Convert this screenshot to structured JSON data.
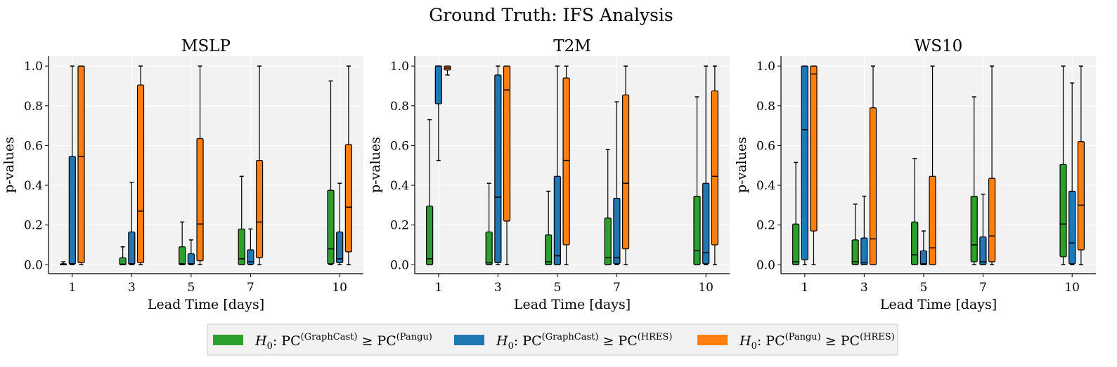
{
  "title": "Ground Truth: IFS Analysis",
  "xlabel": "Lead Time [days]",
  "ylabel": "p-values",
  "legend": {
    "placement": "bottom-center",
    "entries": [
      {
        "prefix": "H",
        "sub": "0",
        "mid": ": PC",
        "sup1": "(GraphCast)",
        "rel": " ≥ PC",
        "sup2": "(Pangu)",
        "color": "#2ca02c"
      },
      {
        "prefix": "H",
        "sub": "0",
        "mid": ": PC",
        "sup1": "(GraphCast)",
        "rel": " ≥ PC",
        "sup2": "(HRES)",
        "color": "#1f77b4"
      },
      {
        "prefix": "H",
        "sub": "0",
        "mid": ": PC",
        "sup1": "(Pangu)",
        "rel": " ≥ PC",
        "sup2": "(HRES)",
        "color": "#ff7f0e"
      }
    ]
  },
  "chart_data": [
    {
      "type": "boxplot",
      "title": "MSLP",
      "xlabel": "Lead Time [days]",
      "ylabel": "p-values",
      "categories": [
        "1",
        "3",
        "5",
        "7",
        "10"
      ],
      "x": [
        1,
        3,
        5,
        7,
        10
      ],
      "xlim": [
        0.2,
        10.8
      ],
      "ylim": [
        -0.045,
        1.05
      ],
      "yticks": [
        0.0,
        0.2,
        0.4,
        0.6,
        0.8,
        1.0
      ],
      "grid": true,
      "series": [
        {
          "name": "H0: PC(GraphCast) ≥ PC(Pangu)",
          "color": "#2ca02c",
          "offset": -0.3,
          "boxes": [
            {
              "x": 1,
              "wlo": 0.0,
              "q1": 0.0,
              "med": 0.0,
              "q3": 0.005,
              "whi": 0.015
            },
            {
              "x": 3,
              "wlo": 0.0,
              "q1": 0.0,
              "med": 0.003,
              "q3": 0.035,
              "whi": 0.09
            },
            {
              "x": 5,
              "wlo": 0.0,
              "q1": 0.0,
              "med": 0.005,
              "q3": 0.09,
              "whi": 0.215
            },
            {
              "x": 7,
              "wlo": 0.0,
              "q1": 0.0,
              "med": 0.03,
              "q3": 0.18,
              "whi": 0.445
            },
            {
              "x": 10,
              "wlo": 0.0,
              "q1": 0.005,
              "med": 0.08,
              "q3": 0.375,
              "whi": 0.925
            }
          ]
        },
        {
          "name": "H0: PC(GraphCast) ≥ PC(HRES)",
          "color": "#1f77b4",
          "offset": 0.0,
          "boxes": [
            {
              "x": 1,
              "wlo": 0.0,
              "q1": 0.003,
              "med": 0.005,
              "q3": 0.545,
              "whi": 1.0
            },
            {
              "x": 3,
              "wlo": 0.0,
              "q1": 0.003,
              "med": 0.005,
              "q3": 0.165,
              "whi": 0.415
            },
            {
              "x": 5,
              "wlo": 0.0,
              "q1": 0.002,
              "med": 0.005,
              "q3": 0.055,
              "whi": 0.125
            },
            {
              "x": 7,
              "wlo": 0.0,
              "q1": 0.002,
              "med": 0.015,
              "q3": 0.075,
              "whi": 0.18
            },
            {
              "x": 10,
              "wlo": 0.0,
              "q1": 0.01,
              "med": 0.03,
              "q3": 0.165,
              "whi": 0.41
            }
          ]
        },
        {
          "name": "H0: PC(Pangu) ≥ PC(HRES)",
          "color": "#ff7f0e",
          "offset": 0.3,
          "boxes": [
            {
              "x": 1,
              "wlo": 0.0,
              "q1": 0.01,
              "med": 0.545,
              "q3": 1.0,
              "whi": 1.0
            },
            {
              "x": 3,
              "wlo": 0.0,
              "q1": 0.01,
              "med": 0.27,
              "q3": 0.905,
              "whi": 1.0
            },
            {
              "x": 5,
              "wlo": 0.0,
              "q1": 0.02,
              "med": 0.205,
              "q3": 0.635,
              "whi": 1.0
            },
            {
              "x": 7,
              "wlo": 0.0,
              "q1": 0.035,
              "med": 0.215,
              "q3": 0.525,
              "whi": 1.0
            },
            {
              "x": 10,
              "wlo": 0.0,
              "q1": 0.065,
              "med": 0.29,
              "q3": 0.605,
              "whi": 1.0
            }
          ]
        }
      ]
    },
    {
      "type": "boxplot",
      "title": "T2M",
      "xlabel": "Lead Time [days]",
      "ylabel": "p-values",
      "categories": [
        "1",
        "3",
        "5",
        "7",
        "10"
      ],
      "x": [
        1,
        3,
        5,
        7,
        10
      ],
      "xlim": [
        0.2,
        10.8
      ],
      "ylim": [
        -0.045,
        1.05
      ],
      "yticks": [
        0.0,
        0.2,
        0.4,
        0.6,
        0.8,
        1.0
      ],
      "grid": true,
      "series": [
        {
          "name": "H0: PC(GraphCast) ≥ PC(Pangu)",
          "color": "#2ca02c",
          "offset": -0.3,
          "boxes": [
            {
              "x": 1,
              "wlo": 0.0,
              "q1": 0.0,
              "med": 0.03,
              "q3": 0.295,
              "whi": 0.73
            },
            {
              "x": 3,
              "wlo": 0.0,
              "q1": 0.0,
              "med": 0.01,
              "q3": 0.165,
              "whi": 0.41
            },
            {
              "x": 5,
              "wlo": 0.0,
              "q1": 0.0,
              "med": 0.015,
              "q3": 0.15,
              "whi": 0.37
            },
            {
              "x": 7,
              "wlo": 0.0,
              "q1": 0.0,
              "med": 0.035,
              "q3": 0.235,
              "whi": 0.58
            },
            {
              "x": 10,
              "wlo": 0.0,
              "q1": 0.0,
              "med": 0.07,
              "q3": 0.345,
              "whi": 0.845
            }
          ]
        },
        {
          "name": "H0: PC(GraphCast) ≥ PC(HRES)",
          "color": "#1f77b4",
          "offset": 0.0,
          "boxes": [
            {
              "x": 1,
              "wlo": 0.525,
              "q1": 0.81,
              "med": 1.0,
              "q3": 1.0,
              "whi": 1.0
            },
            {
              "x": 3,
              "wlo": 0.0,
              "q1": 0.01,
              "med": 0.34,
              "q3": 0.955,
              "whi": 1.0
            },
            {
              "x": 5,
              "wlo": 0.0,
              "q1": 0.0,
              "med": 0.045,
              "q3": 0.445,
              "whi": 1.0
            },
            {
              "x": 7,
              "wlo": 0.0,
              "q1": 0.005,
              "med": 0.035,
              "q3": 0.335,
              "whi": 0.82
            },
            {
              "x": 10,
              "wlo": 0.0,
              "q1": 0.005,
              "med": 0.06,
              "q3": 0.41,
              "whi": 1.0
            }
          ]
        },
        {
          "name": "H0: PC(Pangu) ≥ PC(HRES)",
          "color": "#ff7f0e",
          "offset": 0.3,
          "boxes": [
            {
              "x": 1,
              "wlo": 0.955,
              "q1": 0.98,
              "med": 0.99,
              "q3": 1.0,
              "whi": 1.0
            },
            {
              "x": 3,
              "wlo": 0.0,
              "q1": 0.22,
              "med": 0.88,
              "q3": 1.0,
              "whi": 1.0
            },
            {
              "x": 5,
              "wlo": 0.0,
              "q1": 0.1,
              "med": 0.525,
              "q3": 0.94,
              "whi": 1.0
            },
            {
              "x": 7,
              "wlo": 0.0,
              "q1": 0.08,
              "med": 0.41,
              "q3": 0.855,
              "whi": 1.0
            },
            {
              "x": 10,
              "wlo": 0.0,
              "q1": 0.1,
              "med": 0.445,
              "q3": 0.875,
              "whi": 1.0
            }
          ]
        }
      ]
    },
    {
      "type": "boxplot",
      "title": "WS10",
      "xlabel": "Lead Time [days]",
      "ylabel": "p-values",
      "categories": [
        "1",
        "3",
        "5",
        "7",
        "10"
      ],
      "x": [
        1,
        3,
        5,
        7,
        10
      ],
      "xlim": [
        0.2,
        10.8
      ],
      "ylim": [
        -0.045,
        1.05
      ],
      "yticks": [
        0.0,
        0.2,
        0.4,
        0.6,
        0.8,
        1.0
      ],
      "grid": true,
      "series": [
        {
          "name": "H0: PC(GraphCast) ≥ PC(Pangu)",
          "color": "#2ca02c",
          "offset": -0.3,
          "boxes": [
            {
              "x": 1,
              "wlo": 0.0,
              "q1": 0.0,
              "med": 0.015,
              "q3": 0.205,
              "whi": 0.515
            },
            {
              "x": 3,
              "wlo": 0.0,
              "q1": 0.0,
              "med": 0.015,
              "q3": 0.125,
              "whi": 0.305
            },
            {
              "x": 5,
              "wlo": 0.0,
              "q1": 0.0,
              "med": 0.05,
              "q3": 0.215,
              "whi": 0.535
            },
            {
              "x": 7,
              "wlo": 0.0,
              "q1": 0.015,
              "med": 0.1,
              "q3": 0.345,
              "whi": 0.845
            },
            {
              "x": 10,
              "wlo": 0.0,
              "q1": 0.04,
              "med": 0.205,
              "q3": 0.505,
              "whi": 1.0
            }
          ]
        },
        {
          "name": "H0: PC(GraphCast) ≥ PC(HRES)",
          "color": "#1f77b4",
          "offset": 0.0,
          "boxes": [
            {
              "x": 1,
              "wlo": 0.0,
              "q1": 0.025,
              "med": 0.68,
              "q3": 1.0,
              "whi": 1.0
            },
            {
              "x": 3,
              "wlo": 0.0,
              "q1": 0.0,
              "med": 0.01,
              "q3": 0.135,
              "whi": 0.345
            },
            {
              "x": 5,
              "wlo": 0.0,
              "q1": 0.0,
              "med": 0.005,
              "q3": 0.07,
              "whi": 0.17
            },
            {
              "x": 7,
              "wlo": 0.0,
              "q1": 0.0,
              "med": 0.015,
              "q3": 0.14,
              "whi": 0.355
            },
            {
              "x": 10,
              "wlo": 0.0,
              "q1": 0.005,
              "med": 0.11,
              "q3": 0.37,
              "whi": 0.915
            }
          ]
        },
        {
          "name": "H0: PC(Pangu) ≥ PC(HRES)",
          "color": "#ff7f0e",
          "offset": 0.3,
          "boxes": [
            {
              "x": 1,
              "wlo": 0.0,
              "q1": 0.17,
              "med": 0.96,
              "q3": 1.0,
              "whi": 1.0
            },
            {
              "x": 3,
              "wlo": 0.0,
              "q1": 0.0,
              "med": 0.13,
              "q3": 0.79,
              "whi": 1.0
            },
            {
              "x": 5,
              "wlo": 0.0,
              "q1": 0.0,
              "med": 0.085,
              "q3": 0.445,
              "whi": 1.0
            },
            {
              "x": 7,
              "wlo": 0.0,
              "q1": 0.015,
              "med": 0.145,
              "q3": 0.435,
              "whi": 1.0
            },
            {
              "x": 10,
              "wlo": 0.0,
              "q1": 0.075,
              "med": 0.3,
              "q3": 0.62,
              "whi": 1.0
            }
          ]
        }
      ]
    }
  ]
}
